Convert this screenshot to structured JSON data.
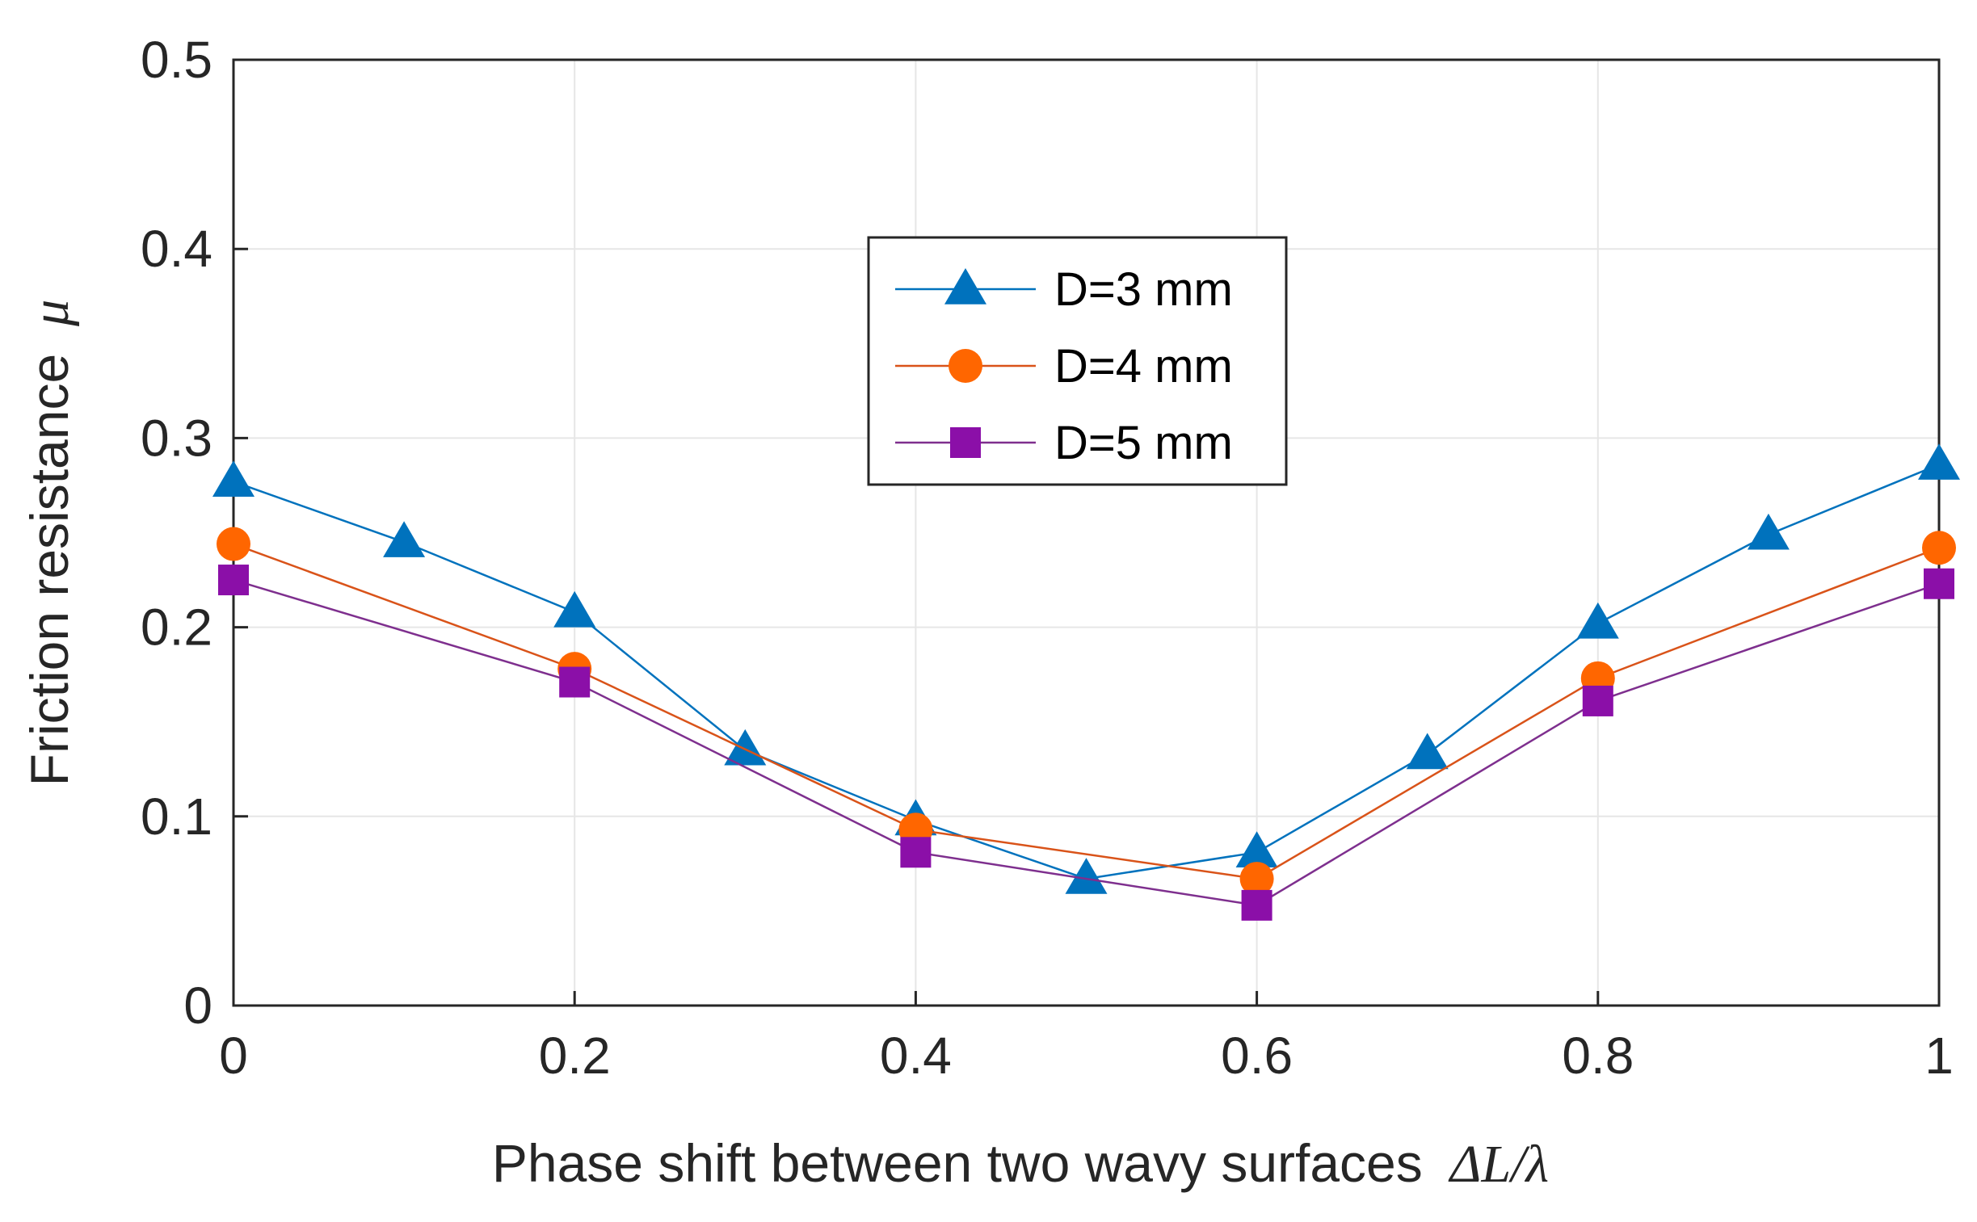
{
  "chart_data": {
    "type": "line",
    "title": "",
    "xlabel": "Phase shift between two wavy surfaces",
    "xlabel_math": "ΔL/λ",
    "ylabel": "Friction resistance",
    "ylabel_symbol": "μ",
    "xlim": [
      0,
      1
    ],
    "ylim": [
      0,
      0.5
    ],
    "xticks": [
      0,
      0.2,
      0.4,
      0.6,
      0.8,
      1
    ],
    "xtick_labels": [
      "0",
      "0.2",
      "0.4",
      "0.6",
      "0.8",
      "1"
    ],
    "yticks": [
      0,
      0.1,
      0.2,
      0.3,
      0.4,
      0.5
    ],
    "ytick_labels": [
      "0",
      "0.1",
      "0.2",
      "0.3",
      "0.4",
      "0.5"
    ],
    "grid": true,
    "legend_position": "top-center",
    "series": [
      {
        "name": "D=3 mm",
        "color": "#0072BD",
        "marker": "triangle",
        "x": [
          0,
          0.1,
          0.2,
          0.3,
          0.4,
          0.5,
          0.6,
          0.7,
          0.8,
          0.9,
          1.0
        ],
        "y": [
          0.277,
          0.245,
          0.208,
          0.135,
          0.098,
          0.067,
          0.081,
          0.133,
          0.202,
          0.249,
          0.286
        ]
      },
      {
        "name": "D=4 mm",
        "color": "#D95319",
        "marker": "circle",
        "x": [
          0,
          0.2,
          0.4,
          0.6,
          0.8,
          1.0
        ],
        "y": [
          0.244,
          0.178,
          0.093,
          0.067,
          0.173,
          0.242
        ]
      },
      {
        "name": "D=5 mm",
        "color": "#7E2F8E",
        "marker": "square",
        "x": [
          0,
          0.2,
          0.4,
          0.6,
          0.8,
          1.0
        ],
        "y": [
          0.225,
          0.171,
          0.081,
          0.053,
          0.161,
          0.223
        ]
      }
    ]
  },
  "colors": {
    "marker_d3": "#0072BD",
    "marker_d4": "#FF6600",
    "marker_d5": "#8B0FA8",
    "grid": "#e6e6e6",
    "axis": "#262626"
  }
}
